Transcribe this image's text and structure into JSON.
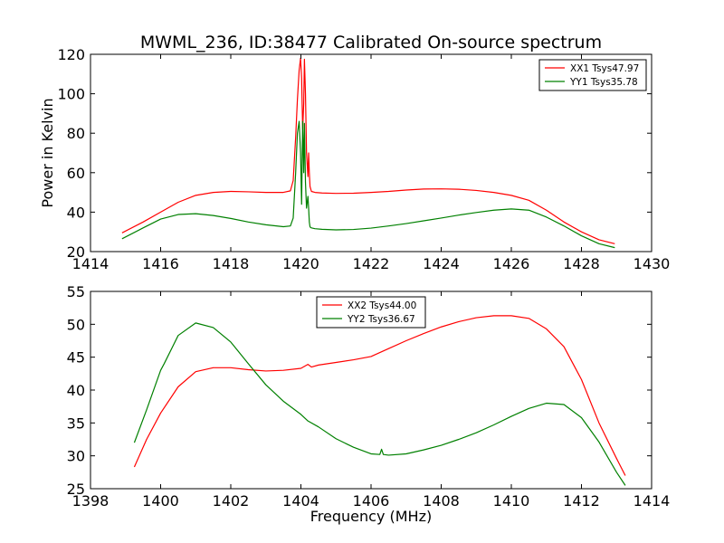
{
  "chart_data": [
    {
      "type": "line",
      "title": "MWML_236, ID:38477 Calibrated On-source spectrum",
      "xlabel": "",
      "ylabel": "Power in Kelvin",
      "xlim": [
        1414,
        1430
      ],
      "ylim": [
        20,
        120
      ],
      "xticks": [
        1414,
        1416,
        1418,
        1420,
        1422,
        1424,
        1426,
        1428,
        1430
      ],
      "yticks": [
        20,
        40,
        60,
        80,
        100,
        120
      ],
      "legend_position": "top-right",
      "series": [
        {
          "name": "XX1 Tsys47.97",
          "color": "#ff0000",
          "x": [
            1414.9,
            1415.5,
            1416,
            1416.5,
            1417,
            1417.5,
            1418,
            1418.5,
            1419,
            1419.5,
            1419.7,
            1419.78,
            1419.85,
            1419.9,
            1419.95,
            1419.99,
            1420.02,
            1420.05,
            1420.08,
            1420.1,
            1420.13,
            1420.16,
            1420.2,
            1420.22,
            1420.24,
            1420.26,
            1420.3,
            1420.4,
            1420.6,
            1421,
            1421.5,
            1422,
            1422.5,
            1423,
            1423.5,
            1424,
            1424.5,
            1425,
            1425.5,
            1426,
            1426.5,
            1427,
            1427.5,
            1428,
            1428.5,
            1428.95
          ],
          "y": [
            29.5,
            35,
            40,
            45,
            48.5,
            50,
            50.5,
            50.3,
            50,
            50,
            50.8,
            56,
            78,
            97,
            112,
            118,
            108,
            82,
            95,
            117.5,
            100,
            70,
            58,
            70,
            60,
            53,
            50.5,
            50,
            49.7,
            49.5,
            49.6,
            50,
            50.5,
            51.2,
            51.7,
            51.8,
            51.6,
            51,
            50,
            48.5,
            46,
            41,
            35,
            30,
            26,
            24
          ]
        },
        {
          "name": "YY1 Tsys35.78",
          "color": "#008000",
          "x": [
            1414.9,
            1415.5,
            1416,
            1416.5,
            1417,
            1417.5,
            1418,
            1418.5,
            1419,
            1419.5,
            1419.7,
            1419.78,
            1419.85,
            1419.9,
            1419.95,
            1419.99,
            1420.02,
            1420.05,
            1420.08,
            1420.1,
            1420.13,
            1420.16,
            1420.2,
            1420.22,
            1420.24,
            1420.26,
            1420.3,
            1420.4,
            1420.6,
            1421,
            1421.5,
            1422,
            1422.5,
            1423,
            1423.5,
            1424,
            1424.5,
            1425,
            1425.5,
            1426,
            1426.5,
            1427,
            1427.5,
            1428,
            1428.5,
            1428.95
          ],
          "y": [
            26.5,
            32,
            36.5,
            38.8,
            39.2,
            38.3,
            36.8,
            35,
            33.6,
            32.6,
            33,
            37,
            60,
            80,
            86,
            70,
            44,
            86,
            60,
            85,
            55,
            42,
            48,
            42,
            35,
            32.5,
            32,
            31.6,
            31.3,
            31,
            31.2,
            31.9,
            33,
            34.2,
            35.6,
            37,
            38.5,
            39.8,
            41,
            41.6,
            41,
            37.5,
            33,
            28,
            24,
            22
          ]
        }
      ]
    },
    {
      "type": "line",
      "title": "",
      "xlabel": "Frequency (MHz)",
      "ylabel": "",
      "xlim": [
        1398,
        1414
      ],
      "ylim": [
        25,
        55
      ],
      "xticks": [
        1398,
        1400,
        1402,
        1404,
        1406,
        1408,
        1410,
        1412,
        1414
      ],
      "yticks": [
        25,
        30,
        35,
        40,
        45,
        50,
        55
      ],
      "legend_position": "top-center",
      "series": [
        {
          "name": "XX2 Tsys44.00",
          "color": "#ff0000",
          "x": [
            1399.25,
            1399.6,
            1400,
            1400.5,
            1401,
            1401.5,
            1402,
            1402.5,
            1403,
            1403.5,
            1404,
            1404.2,
            1404.3,
            1404.5,
            1405,
            1405.5,
            1406,
            1406.5,
            1407,
            1407.5,
            1408,
            1408.5,
            1409,
            1409.5,
            1410,
            1410.5,
            1411,
            1411.5,
            1412,
            1412.5,
            1413,
            1413.25
          ],
          "y": [
            28.3,
            32.5,
            36.5,
            40.5,
            42.8,
            43.4,
            43.4,
            43.1,
            42.9,
            43,
            43.3,
            43.9,
            43.5,
            43.8,
            44.2,
            44.6,
            45.1,
            46.3,
            47.5,
            48.6,
            49.6,
            50.4,
            51,
            51.3,
            51.3,
            50.9,
            49.3,
            46.6,
            41.6,
            35,
            29.6,
            27
          ]
        },
        {
          "name": "YY2 Tsys36.67",
          "color": "#008000",
          "x": [
            1399.25,
            1399.6,
            1400,
            1400.1,
            1400.5,
            1401,
            1401.5,
            1402,
            1402.5,
            1403,
            1403.5,
            1404,
            1404.2,
            1404.5,
            1405,
            1405.5,
            1406,
            1406.25,
            1406.3,
            1406.35,
            1406.5,
            1407,
            1407.5,
            1408,
            1408.5,
            1409,
            1409.5,
            1410,
            1410.5,
            1411,
            1411.5,
            1412,
            1412.5,
            1413,
            1413.25
          ],
          "y": [
            32,
            37,
            43,
            44,
            48.3,
            50.2,
            49.5,
            47.3,
            44,
            40.8,
            38.3,
            36.3,
            35.3,
            34.4,
            32.6,
            31.3,
            30.3,
            30.2,
            31,
            30.2,
            30.1,
            30.3,
            30.9,
            31.6,
            32.5,
            33.5,
            34.7,
            36,
            37.2,
            38,
            37.8,
            35.8,
            32.1,
            27.5,
            25.5
          ]
        }
      ]
    }
  ]
}
